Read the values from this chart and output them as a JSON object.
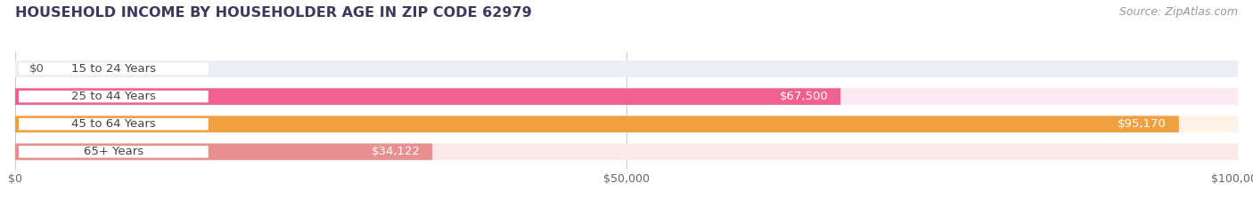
{
  "title": "HOUSEHOLD INCOME BY HOUSEHOLDER AGE IN ZIP CODE 62979",
  "source": "Source: ZipAtlas.com",
  "categories": [
    "15 to 24 Years",
    "25 to 44 Years",
    "45 to 64 Years",
    "65+ Years"
  ],
  "values": [
    0,
    67500,
    95170,
    34122
  ],
  "labels": [
    "$0",
    "$67,500",
    "$95,170",
    "$34,122"
  ],
  "bar_colors": [
    "#b0b0d8",
    "#f06090",
    "#f0a040",
    "#e89090"
  ],
  "bar_bg_colors": [
    "#ededf5",
    "#fce8f0",
    "#fef3e6",
    "#fce8e8"
  ],
  "xlim": [
    0,
    100000
  ],
  "xticks": [
    0,
    50000,
    100000
  ],
  "xtick_labels": [
    "$0",
    "$50,000",
    "$100,000"
  ],
  "title_color": "#3a3a5c",
  "source_color": "#999999",
  "title_fontsize": 11.5,
  "source_fontsize": 9,
  "bar_label_fontsize": 9.5,
  "category_fontsize": 9.5,
  "xtick_fontsize": 9,
  "bar_height": 0.6,
  "background_color": "#ffffff",
  "grid_color": "#cccccc"
}
